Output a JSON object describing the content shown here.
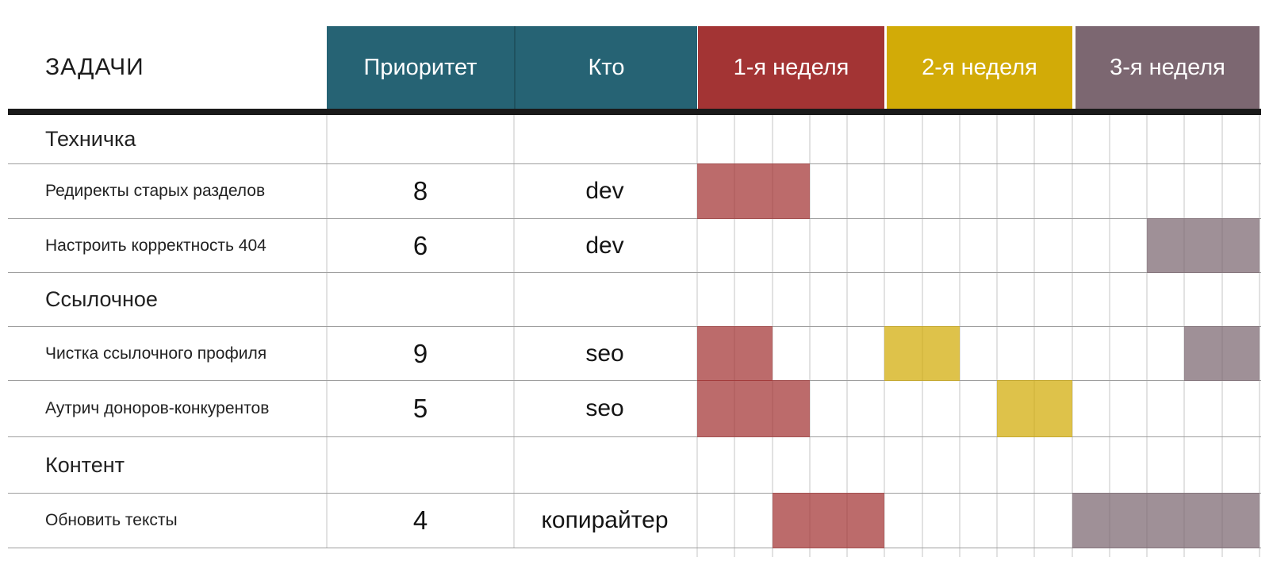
{
  "page": {
    "background": "#ffffff"
  },
  "header": {
    "tasks_label": "ЗАДАЧИ"
  },
  "chart_data": {
    "type": "table",
    "subtype": "gantt",
    "title": "ЗАДАЧИ",
    "info_columns": [
      "Приоритет",
      "Кто"
    ],
    "week_columns": [
      "1-я неделя",
      "2-я неделя",
      "3-я неделя"
    ],
    "days_per_week": 5,
    "total_days": 15,
    "legend_position": "none",
    "grid": "on",
    "colors": {
      "info_header": "#266374",
      "week_1": "#a33434",
      "week_2": "#d2ab07",
      "week_3": "#7c6771",
      "bar_opacity": 0.73,
      "grid_line": "#e2e2e2",
      "row_line": "#9e9e9e",
      "header_rule": "#1a1a1a",
      "text": "#222222"
    },
    "rows": [
      {
        "kind": "section",
        "task": "Техничка",
        "priority": "",
        "who": "",
        "bars": []
      },
      {
        "kind": "task",
        "task": "Редиректы старых разделов",
        "priority": "8",
        "who": "dev",
        "bars": [
          {
            "week": 1,
            "days": [
              1,
              3
            ]
          }
        ]
      },
      {
        "kind": "task",
        "task": "Настроить корректность 404",
        "priority": "6",
        "who": "dev",
        "bars": [
          {
            "week": 3,
            "days": [
              13,
              15
            ]
          }
        ]
      },
      {
        "kind": "section",
        "task": "Ссылочное",
        "priority": "",
        "who": "",
        "bars": []
      },
      {
        "kind": "task",
        "task": "Чистка ссылочного профиля",
        "priority": "9",
        "who": "seo",
        "bars": [
          {
            "week": 1,
            "days": [
              1,
              2
            ]
          },
          {
            "week": 2,
            "days": [
              6,
              7
            ]
          },
          {
            "week": 3,
            "days": [
              14,
              15
            ]
          }
        ]
      },
      {
        "kind": "task",
        "task": "Аутрич доноров-конкурентов",
        "priority": "5",
        "who": "seo",
        "bars": [
          {
            "week": 1,
            "days": [
              1,
              3
            ]
          },
          {
            "week": 2,
            "days": [
              9,
              10
            ]
          }
        ]
      },
      {
        "kind": "section",
        "task": "Контент",
        "priority": "",
        "who": "",
        "bars": []
      },
      {
        "kind": "task",
        "task": "Обновить тексты",
        "priority": "4",
        "who": "копирайтер",
        "bars": [
          {
            "week": 1,
            "days": [
              3,
              5
            ]
          },
          {
            "week": 3,
            "days": [
              11,
              15
            ]
          }
        ]
      }
    ]
  }
}
